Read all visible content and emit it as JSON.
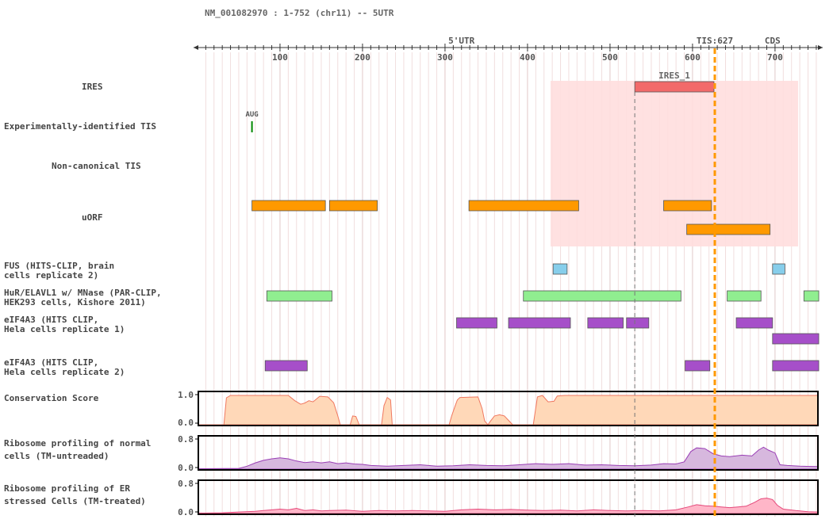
{
  "chart_data": {
    "type": "genome-track",
    "title": "NM_001082970 : 1-752 (chr11) -- 5UTR",
    "x_range": [
      1,
      752
    ],
    "x_ticks": [
      100,
      200,
      300,
      400,
      500,
      600,
      700
    ],
    "region_markers": {
      "utr5": {
        "label": "5'UTR",
        "position": 320,
        "color": "#dd0000"
      },
      "tis": {
        "label": "TIS:627",
        "position": 627,
        "color": "#ff9900"
      },
      "cds": {
        "label": "CDS",
        "position": 697,
        "color": "#008800"
      }
    },
    "dashed_marker": 530,
    "highlight_region": {
      "start": 428,
      "end": 728,
      "color": "#ffdede"
    },
    "tracks": [
      {
        "key": "ires",
        "label": [
          "IRES"
        ],
        "features": [
          {
            "start": 530,
            "end": 626,
            "row": 0,
            "color": "#f26a6a",
            "label": "IRES_1"
          }
        ]
      },
      {
        "key": "exp_tis",
        "label": [
          "Experimentally-identified TIS"
        ],
        "features": [
          {
            "position": 66,
            "label": "AUG",
            "color": "#008800"
          }
        ]
      },
      {
        "key": "noncanon_tis",
        "label": [
          "Non-canonical TIS"
        ],
        "features": []
      },
      {
        "key": "uorf",
        "label": [
          "uORF"
        ],
        "features": [
          {
            "start": 66,
            "end": 155,
            "row": 0,
            "color": "#ff9900"
          },
          {
            "start": 160,
            "end": 218,
            "row": 0,
            "color": "#ff9900"
          },
          {
            "start": 329,
            "end": 462,
            "row": 0,
            "color": "#ff9900"
          },
          {
            "start": 565,
            "end": 623,
            "row": 0,
            "color": "#ff9900"
          },
          {
            "start": 593,
            "end": 694,
            "row": 1,
            "color": "#ff9900"
          }
        ]
      },
      {
        "key": "fus",
        "label": [
          "FUS (HITS-CLIP, brain",
          "cells replicate 2)"
        ],
        "features": [
          {
            "start": 431,
            "end": 448,
            "row": 0,
            "color": "#87ceeb"
          },
          {
            "start": 697,
            "end": 712,
            "row": 0,
            "color": "#87ceeb"
          }
        ]
      },
      {
        "key": "hur",
        "label": [
          "HuR/ELAVL1 w/ MNase (PAR-CLIP,",
          "HEK293 cells, Kishore 2011)"
        ],
        "features": [
          {
            "start": 84,
            "end": 163,
            "row": 0,
            "color": "#90ee90"
          },
          {
            "start": 395,
            "end": 586,
            "row": 0,
            "color": "#90ee90"
          },
          {
            "start": 642,
            "end": 683,
            "row": 0,
            "color": "#90ee90"
          },
          {
            "start": 735,
            "end": 753,
            "row": 0,
            "color": "#90ee90"
          }
        ]
      },
      {
        "key": "eif4a3_1",
        "label": [
          "eIF4A3 (HITS CLIP,",
          "Hela cells replicate 1)"
        ],
        "features": [
          {
            "start": 314,
            "end": 363,
            "row": 0,
            "color": "#a64fc9"
          },
          {
            "start": 377,
            "end": 452,
            "row": 0,
            "color": "#a64fc9"
          },
          {
            "start": 473,
            "end": 516,
            "row": 0,
            "color": "#a64fc9"
          },
          {
            "start": 520,
            "end": 547,
            "row": 0,
            "color": "#a64fc9"
          },
          {
            "start": 653,
            "end": 697,
            "row": 0,
            "color": "#a64fc9"
          },
          {
            "start": 697,
            "end": 753,
            "row": 1,
            "color": "#a64fc9"
          }
        ]
      },
      {
        "key": "eif4a3_2",
        "label": [
          "eIF4A3 (HITS CLIP,",
          "Hela cells replicate 2)"
        ],
        "features": [
          {
            "start": 82,
            "end": 133,
            "row": 0,
            "color": "#a64fc9"
          },
          {
            "start": 591,
            "end": 621,
            "row": 0,
            "color": "#a64fc9"
          },
          {
            "start": 697,
            "end": 753,
            "row": 0,
            "color": "#a64fc9"
          }
        ]
      }
    ],
    "signal_tracks": [
      {
        "key": "conservation",
        "label": [
          "Conservation Score"
        ],
        "ylim": [
          0,
          1.0
        ],
        "ytick_labels": [
          "1.0",
          "0.0"
        ],
        "fill": "#ffd8b8",
        "stroke": "#f07860",
        "points": [
          [
            1,
            0
          ],
          [
            32,
            0
          ],
          [
            35,
            0.92
          ],
          [
            40,
            1
          ],
          [
            110,
            1
          ],
          [
            118,
            0.82
          ],
          [
            125,
            0.7
          ],
          [
            130,
            0.74
          ],
          [
            135,
            0.82
          ],
          [
            140,
            0.78
          ],
          [
            148,
            0.97
          ],
          [
            158,
            0.95
          ],
          [
            165,
            0.75
          ],
          [
            170,
            0.3
          ],
          [
            173,
            0
          ],
          [
            185,
            0
          ],
          [
            188,
            0.3
          ],
          [
            192,
            0.28
          ],
          [
            196,
            0
          ],
          [
            223,
            0
          ],
          [
            226,
            0.65
          ],
          [
            230,
            0.93
          ],
          [
            234,
            0.85
          ],
          [
            236,
            0
          ],
          [
            305,
            0
          ],
          [
            308,
            0.3
          ],
          [
            312,
            0.62
          ],
          [
            315,
            0.85
          ],
          [
            318,
            0.93
          ],
          [
            340,
            0.95
          ],
          [
            345,
            0.55
          ],
          [
            348,
            0.13
          ],
          [
            352,
            0
          ],
          [
            355,
            0.12
          ],
          [
            360,
            0.3
          ],
          [
            366,
            0.34
          ],
          [
            372,
            0.3
          ],
          [
            378,
            0.12
          ],
          [
            382,
            0
          ],
          [
            407,
            0
          ],
          [
            412,
            0.95
          ],
          [
            418,
            1
          ],
          [
            425,
            0.78
          ],
          [
            432,
            0.8
          ],
          [
            436,
            0.98
          ],
          [
            445,
            1
          ],
          [
            752,
            1
          ]
        ]
      },
      {
        "key": "ribo_normal",
        "label": [
          "Ribosome profiling of normal",
          "cells (TM-untreaded)"
        ],
        "ylim": [
          0,
          0.8
        ],
        "ytick_labels": [
          "0.8",
          "0.0"
        ],
        "fill": "#d7b8de",
        "stroke": "#9a3fb5",
        "points": [
          [
            1,
            0.01
          ],
          [
            50,
            0.02
          ],
          [
            60,
            0.08
          ],
          [
            70,
            0.17
          ],
          [
            80,
            0.24
          ],
          [
            90,
            0.28
          ],
          [
            100,
            0.31
          ],
          [
            110,
            0.28
          ],
          [
            120,
            0.22
          ],
          [
            130,
            0.18
          ],
          [
            140,
            0.2
          ],
          [
            150,
            0.17
          ],
          [
            160,
            0.2
          ],
          [
            170,
            0.15
          ],
          [
            180,
            0.17
          ],
          [
            190,
            0.14
          ],
          [
            200,
            0.13
          ],
          [
            210,
            0.1
          ],
          [
            230,
            0.08
          ],
          [
            250,
            0.1
          ],
          [
            270,
            0.12
          ],
          [
            290,
            0.08
          ],
          [
            310,
            0.09
          ],
          [
            330,
            0.12
          ],
          [
            350,
            0.1
          ],
          [
            370,
            0.09
          ],
          [
            390,
            0.12
          ],
          [
            410,
            0.15
          ],
          [
            430,
            0.13
          ],
          [
            450,
            0.15
          ],
          [
            470,
            0.11
          ],
          [
            490,
            0.12
          ],
          [
            510,
            0.1
          ],
          [
            530,
            0.09
          ],
          [
            550,
            0.11
          ],
          [
            565,
            0.15
          ],
          [
            580,
            0.14
          ],
          [
            590,
            0.2
          ],
          [
            598,
            0.48
          ],
          [
            605,
            0.58
          ],
          [
            615,
            0.56
          ],
          [
            625,
            0.42
          ],
          [
            635,
            0.36
          ],
          [
            645,
            0.34
          ],
          [
            660,
            0.38
          ],
          [
            672,
            0.36
          ],
          [
            680,
            0.52
          ],
          [
            686,
            0.6
          ],
          [
            692,
            0.52
          ],
          [
            700,
            0.44
          ],
          [
            706,
            0.12
          ],
          [
            715,
            0.1
          ],
          [
            730,
            0.08
          ],
          [
            752,
            0.07
          ]
        ]
      },
      {
        "key": "ribo_er",
        "label": [
          "Ribosome profiling of ER",
          "stressed Cells (TM-treated)"
        ],
        "ylim": [
          0,
          0.8
        ],
        "ytick_labels": [
          "0.8",
          "0.0"
        ],
        "fill": "#ffb6c8",
        "stroke": "#e5487a",
        "points": [
          [
            1,
            0.01
          ],
          [
            30,
            0.02
          ],
          [
            50,
            0.04
          ],
          [
            70,
            0.06
          ],
          [
            80,
            0.08
          ],
          [
            90,
            0.1
          ],
          [
            100,
            0.12
          ],
          [
            110,
            0.1
          ],
          [
            120,
            0.14
          ],
          [
            130,
            0.08
          ],
          [
            140,
            0.1
          ],
          [
            150,
            0.07
          ],
          [
            160,
            0.08
          ],
          [
            180,
            0.09
          ],
          [
            200,
            0.06
          ],
          [
            220,
            0.08
          ],
          [
            240,
            0.07
          ],
          [
            260,
            0.08
          ],
          [
            280,
            0.07
          ],
          [
            300,
            0.06
          ],
          [
            320,
            0.1
          ],
          [
            340,
            0.12
          ],
          [
            360,
            0.1
          ],
          [
            380,
            0.11
          ],
          [
            400,
            0.09
          ],
          [
            420,
            0.08
          ],
          [
            440,
            0.09
          ],
          [
            460,
            0.07
          ],
          [
            480,
            0.1
          ],
          [
            500,
            0.08
          ],
          [
            520,
            0.07
          ],
          [
            540,
            0.08
          ],
          [
            560,
            0.07
          ],
          [
            580,
            0.1
          ],
          [
            595,
            0.18
          ],
          [
            605,
            0.24
          ],
          [
            615,
            0.21
          ],
          [
            625,
            0.2
          ],
          [
            635,
            0.18
          ],
          [
            645,
            0.16
          ],
          [
            655,
            0.18
          ],
          [
            665,
            0.2
          ],
          [
            675,
            0.3
          ],
          [
            683,
            0.4
          ],
          [
            690,
            0.42
          ],
          [
            697,
            0.38
          ],
          [
            703,
            0.22
          ],
          [
            710,
            0.12
          ],
          [
            725,
            0.08
          ],
          [
            740,
            0.05
          ],
          [
            752,
            0.04
          ]
        ]
      }
    ]
  }
}
